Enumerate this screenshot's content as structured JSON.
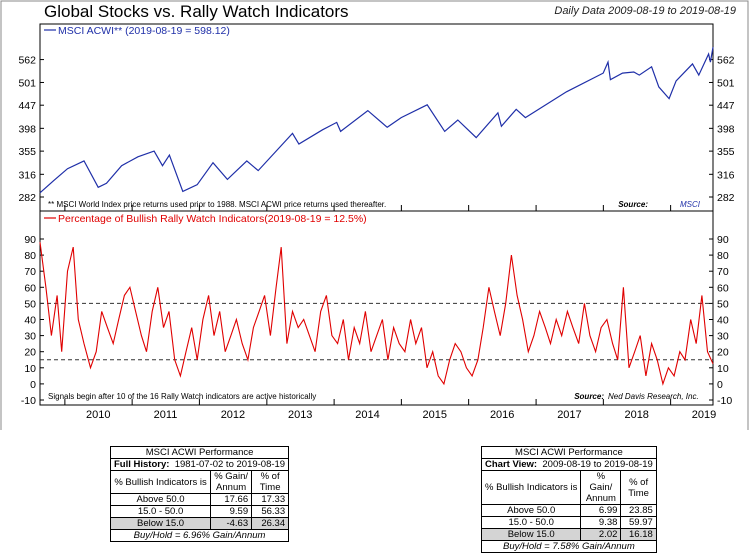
{
  "title": "Global Stocks vs. Rally Watch Indicators",
  "subtitle": "Daily Data 2009-08-19 to 2019-08-19",
  "chart_data": [
    {
      "type": "line",
      "title": "MSCI ACWI** (2019-08-19 = 598.12)",
      "yscale": "log",
      "ylim": [
        282,
        620
      ],
      "yticks": [
        282,
        316,
        355,
        398,
        447,
        501,
        562
      ],
      "xticks": [
        "2010",
        "2011",
        "2012",
        "2013",
        "2014",
        "2015",
        "2016",
        "2017",
        "2018",
        "2019"
      ],
      "footnote": "** MSCI World Index price returns used prior to 1988. MSCI ACWI price returns used thereafter.",
      "source_label": "Source:",
      "source_name": "MSCI",
      "color": "#1f2fa8",
      "series": [
        {
          "name": "MSCI ACWI** (2019-08-19 = 598.12)",
          "x": [
            "2009-08-19",
            "2009-11-01",
            "2010-01-15",
            "2010-04-15",
            "2010-07-01",
            "2010-08-15",
            "2010-11-05",
            "2011-02-01",
            "2011-04-30",
            "2011-06-15",
            "2011-07-22",
            "2011-10-03",
            "2011-12-20",
            "2012-03-15",
            "2012-06-01",
            "2012-09-14",
            "2012-11-15",
            "2013-05-20",
            "2013-06-24",
            "2013-10-30",
            "2014-01-15",
            "2014-02-05",
            "2014-07-03",
            "2014-10-16",
            "2014-12-31",
            "2015-05-21",
            "2015-08-24",
            "2015-11-03",
            "2016-02-11",
            "2016-06-08",
            "2016-06-27",
            "2016-09-15",
            "2016-11-04",
            "2017-06-15",
            "2017-12-31",
            "2018-01-26",
            "2018-02-08",
            "2018-04-15",
            "2018-06-15",
            "2018-07-15",
            "2018-09-20",
            "2018-10-29",
            "2018-12-24",
            "2019-01-31",
            "2019-04-30",
            "2019-06-03",
            "2019-07-26",
            "2019-08-05",
            "2019-08-19"
          ],
          "y": [
            288,
            306,
            325,
            338,
            296,
            302,
            330,
            345,
            355,
            330,
            348,
            290,
            300,
            335,
            308,
            338,
            322,
            388,
            368,
            395,
            410,
            392,
            435,
            400,
            420,
            448,
            392,
            415,
            380,
            430,
            402,
            438,
            420,
            478,
            525,
            555,
            508,
            525,
            528,
            520,
            542,
            490,
            462,
            505,
            550,
            520,
            578,
            555,
            598
          ]
        }
      ]
    },
    {
      "type": "line",
      "title": "Percentage of Bullish Rally Watch Indicators(2019-08-19 = 12.5%)",
      "ylim": [
        -10,
        90
      ],
      "yticks": [
        -10,
        0,
        10,
        20,
        30,
        40,
        50,
        60,
        70,
        80,
        90
      ],
      "reference_lines": [
        50,
        15
      ],
      "footnote": "Signals begin after 10 of the 16 Rally Watch indicators are active historically",
      "source_label": "Source:",
      "source_name": "Ned Davis Research, Inc.",
      "color": "#e00000",
      "series": [
        {
          "name": "Percentage of Bullish Rally Watch Indicators(2019-08-19 = 12.5%)",
          "x": [
            "2009-08-19",
            "2009-09-20",
            "2009-10-20",
            "2009-11-20",
            "2009-12-15",
            "2010-01-15",
            "2010-02-15",
            "2010-03-15",
            "2010-04-15",
            "2010-05-20",
            "2010-06-20",
            "2010-07-20",
            "2010-08-20",
            "2010-09-20",
            "2010-10-20",
            "2010-11-20",
            "2010-12-20",
            "2011-01-20",
            "2011-02-20",
            "2011-03-20",
            "2011-04-20",
            "2011-05-20",
            "2011-06-20",
            "2011-07-20",
            "2011-08-20",
            "2011-09-20",
            "2011-10-20",
            "2011-11-20",
            "2011-12-20",
            "2012-01-20",
            "2012-02-20",
            "2012-03-20",
            "2012-04-20",
            "2012-05-20",
            "2012-06-20",
            "2012-07-20",
            "2012-08-20",
            "2012-09-20",
            "2012-10-20",
            "2012-11-20",
            "2012-12-20",
            "2013-01-20",
            "2013-02-20",
            "2013-03-20",
            "2013-04-20",
            "2013-05-20",
            "2013-06-20",
            "2013-07-20",
            "2013-08-20",
            "2013-09-20",
            "2013-10-20",
            "2013-11-20",
            "2013-12-20",
            "2014-01-20",
            "2014-02-20",
            "2014-03-20",
            "2014-04-20",
            "2014-05-20",
            "2014-06-20",
            "2014-07-20",
            "2014-08-20",
            "2014-09-20",
            "2014-10-20",
            "2014-11-20",
            "2014-12-20",
            "2015-01-20",
            "2015-02-20",
            "2015-03-20",
            "2015-04-20",
            "2015-05-20",
            "2015-06-20",
            "2015-07-20",
            "2015-08-20",
            "2015-09-20",
            "2015-10-20",
            "2015-11-20",
            "2015-12-20",
            "2016-01-20",
            "2016-02-20",
            "2016-03-20",
            "2016-04-20",
            "2016-05-20",
            "2016-06-20",
            "2016-07-20",
            "2016-08-20",
            "2016-09-20",
            "2016-10-20",
            "2016-11-20",
            "2016-12-20",
            "2017-01-20",
            "2017-02-20",
            "2017-03-20",
            "2017-04-20",
            "2017-05-20",
            "2017-06-20",
            "2017-07-20",
            "2017-08-20",
            "2017-09-20",
            "2017-10-20",
            "2017-11-20",
            "2017-12-20",
            "2018-01-20",
            "2018-02-20",
            "2018-03-20",
            "2018-04-20",
            "2018-05-20",
            "2018-06-20",
            "2018-07-20",
            "2018-08-20",
            "2018-09-20",
            "2018-10-20",
            "2018-11-20",
            "2018-12-20",
            "2019-01-20",
            "2019-02-20",
            "2019-03-20",
            "2019-04-20",
            "2019-05-20",
            "2019-06-20",
            "2019-07-20",
            "2019-08-19"
          ],
          "y": [
            88,
            60,
            30,
            55,
            20,
            70,
            85,
            40,
            25,
            10,
            20,
            45,
            35,
            25,
            40,
            55,
            60,
            45,
            30,
            20,
            45,
            60,
            35,
            45,
            15,
            5,
            20,
            35,
            15,
            40,
            55,
            30,
            45,
            20,
            30,
            40,
            25,
            15,
            35,
            45,
            55,
            30,
            60,
            85,
            25,
            45,
            35,
            40,
            30,
            20,
            45,
            55,
            30,
            25,
            40,
            15,
            35,
            25,
            45,
            20,
            30,
            40,
            15,
            35,
            25,
            20,
            40,
            25,
            35,
            10,
            20,
            5,
            0,
            15,
            25,
            20,
            10,
            5,
            15,
            35,
            60,
            45,
            30,
            50,
            80,
            55,
            40,
            20,
            30,
            45,
            35,
            25,
            40,
            30,
            45,
            35,
            25,
            50,
            30,
            20,
            35,
            40,
            25,
            15,
            60,
            10,
            20,
            30,
            5,
            25,
            15,
            0,
            10,
            5,
            20,
            15,
            40,
            25,
            55,
            20,
            12.5
          ]
        }
      ]
    }
  ],
  "tables": [
    {
      "caption": "MSCI ACWI Performance",
      "range_label": "Full History:",
      "range_value": "1981-07-02 to 2019-08-19",
      "col1": "% Bullish Indicators is",
      "col2": "% Gain/ Annum",
      "col3": "% of Time",
      "rows": [
        {
          "label": "Above 50.0",
          "gain": "17.66",
          "time": "17.33"
        },
        {
          "label": "15.0 - 50.0",
          "gain": "9.59",
          "time": "56.33"
        },
        {
          "label": "Below 15.0",
          "gain": "-4.63",
          "time": "26.34"
        }
      ],
      "footer": "Buy/Hold = 6.96% Gain/Annum"
    },
    {
      "caption": "MSCI ACWI Performance",
      "range_label": "Chart View:",
      "range_value": "2009-08-19 to 2019-08-19",
      "col1": "% Bullish Indicators is",
      "col2": "% Gain/ Annum",
      "col3": "% of Time",
      "rows": [
        {
          "label": "Above 50.0",
          "gain": "6.99",
          "time": "23.85"
        },
        {
          "label": "15.0 - 50.0",
          "gain": "9.38",
          "time": "59.97"
        },
        {
          "label": "Below 15.0",
          "gain": "2.02",
          "time": "16.18"
        }
      ],
      "footer": "Buy/Hold = 7.58% Gain/Annum"
    }
  ]
}
